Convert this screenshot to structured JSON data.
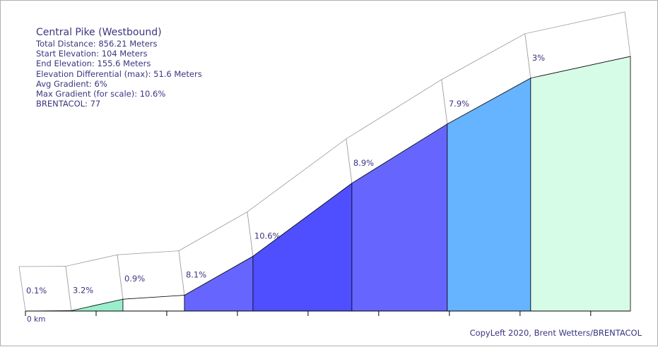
{
  "info": {
    "title": "Central Pike (Westbound)",
    "lines": [
      "Total Distance: 856.21 Meters",
      "Start Elevation: 104 Meters",
      "End Elevation: 155.6 Meters",
      "Elevation Differential (max): 51.6 Meters",
      "Avg Gradient: 6%",
      "Max Gradient (for scale): 10.6%",
      "BRENTACOL: 77"
    ]
  },
  "copyright": "CopyLeft 2020, Brent Wetters/BRENTACOL",
  "chart_data": {
    "type": "area",
    "x_unit": "m",
    "y_unit": "m",
    "x_tick_label": "0 km",
    "x_range": [
      0,
      856.21
    ],
    "y_range": [
      104,
      155.6
    ],
    "boundaries_m": [
      0,
      65,
      138,
      225,
      322,
      462,
      597,
      715,
      856.21
    ],
    "elevations_m": [
      104,
      104.07,
      106.4,
      107.2,
      115.1,
      129.9,
      141.9,
      151.2,
      155.6
    ],
    "segments": [
      {
        "label": "0.1%",
        "gradient": 0.1,
        "color": "#ffffff"
      },
      {
        "label": "3.2%",
        "gradient": 3.2,
        "color": "#99eecc"
      },
      {
        "label": "0.9%",
        "gradient": 0.9,
        "color": "#ffffff"
      },
      {
        "label": "8.1%",
        "gradient": 8.1,
        "color": "#6666ff"
      },
      {
        "label": "10.6%",
        "gradient": 10.6,
        "color": "#4f4fff"
      },
      {
        "label": "8.9%",
        "gradient": 8.9,
        "color": "#6666ff"
      },
      {
        "label": "7.9%",
        "gradient": 7.9,
        "color": "#66b3ff"
      },
      {
        "label": "3%",
        "gradient": 3,
        "color": "#d6fbe6"
      }
    ],
    "grid": false,
    "legend": "none"
  }
}
